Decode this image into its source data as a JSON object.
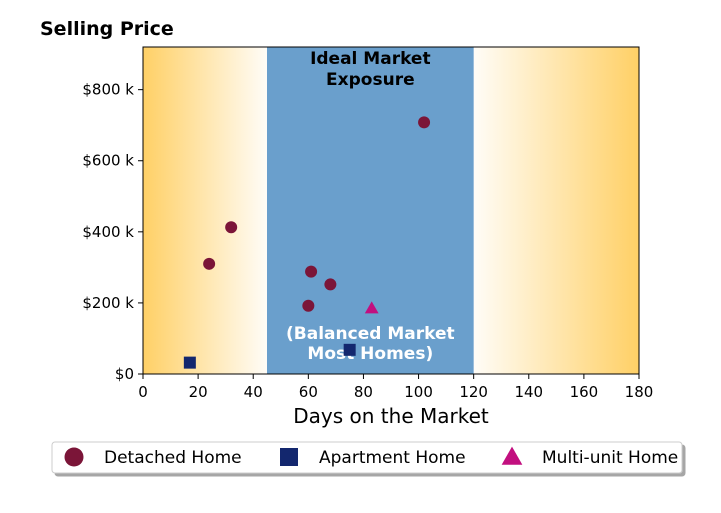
{
  "chart_data": {
    "type": "scatter",
    "title": "Selling Price",
    "xlabel": "Days on the Market",
    "ylabel": "",
    "xlim": [
      0,
      180
    ],
    "ylim": [
      0,
      920000
    ],
    "x_ticks": [
      0,
      20,
      40,
      60,
      80,
      100,
      120,
      140,
      160,
      180
    ],
    "x_tick_labels": [
      "0",
      "20",
      "40",
      "60",
      "80",
      "100",
      "120",
      "140",
      "160",
      "180"
    ],
    "y_ticks": [
      0,
      200000,
      400000,
      600000,
      800000
    ],
    "y_tick_labels": [
      "$0",
      "$200 k",
      "$400 k",
      "$600 k",
      "$800 k"
    ],
    "grid": false,
    "ideal_band": {
      "x_start": 45,
      "x_end": 120,
      "color": "#6a9fcc"
    },
    "gradient_color": "#ffd066",
    "annotations": {
      "top": [
        "Ideal Market",
        "Exposure"
      ],
      "bottom": [
        "(Balanced Market",
        "Most Homes)"
      ]
    },
    "legend_position": "below",
    "series": [
      {
        "name": "Detached Home",
        "marker": "circle",
        "color": "#7b1538",
        "points": [
          {
            "x": 24,
            "y": 310000
          },
          {
            "x": 32,
            "y": 413000
          },
          {
            "x": 60,
            "y": 192000
          },
          {
            "x": 61,
            "y": 288000
          },
          {
            "x": 68,
            "y": 252000
          },
          {
            "x": 102,
            "y": 708000
          }
        ]
      },
      {
        "name": "Apartment Home",
        "marker": "square",
        "color": "#13276e",
        "points": [
          {
            "x": 17,
            "y": 32000
          },
          {
            "x": 75,
            "y": 68000
          }
        ]
      },
      {
        "name": "Multi-unit Home",
        "marker": "triangle",
        "color": "#c20f7f",
        "points": [
          {
            "x": 83,
            "y": 185000
          }
        ]
      }
    ]
  }
}
